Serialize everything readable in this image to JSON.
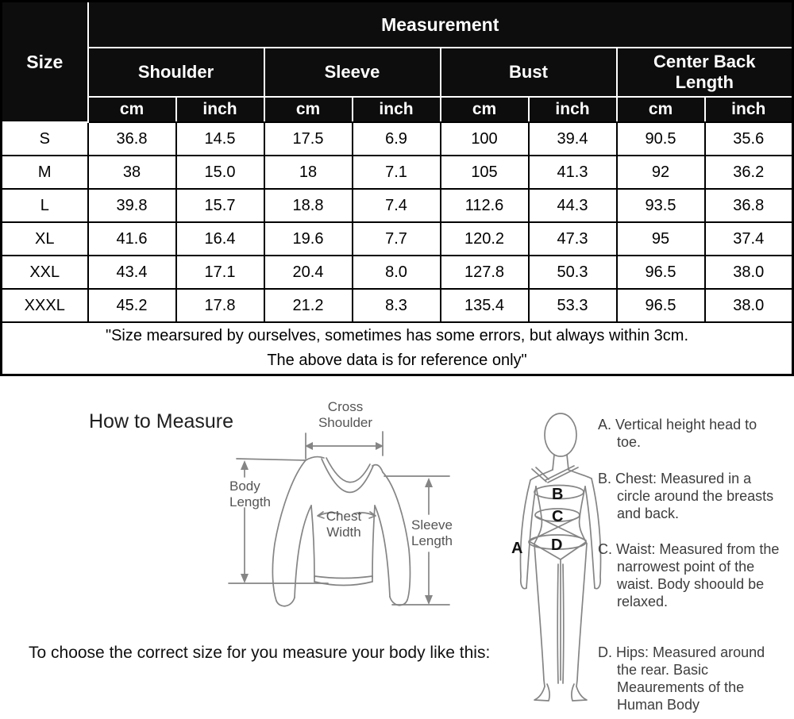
{
  "table": {
    "measurement_header": "Measurement",
    "size_header": "Size",
    "groups": [
      {
        "label": "Shoulder"
      },
      {
        "label": "Sleeve"
      },
      {
        "label": "Bust"
      },
      {
        "label": "Center Back Length"
      }
    ],
    "units": [
      "cm",
      "inch"
    ],
    "rows": [
      {
        "size": "S",
        "values": [
          "36.8",
          "14.5",
          "17.5",
          "6.9",
          "100",
          "39.4",
          "90.5",
          "35.6"
        ]
      },
      {
        "size": "M",
        "values": [
          "38",
          "15.0",
          "18",
          "7.1",
          "105",
          "41.3",
          "92",
          "36.2"
        ]
      },
      {
        "size": "L",
        "values": [
          "39.8",
          "15.7",
          "18.8",
          "7.4",
          "112.6",
          "44.3",
          "93.5",
          "36.8"
        ]
      },
      {
        "size": "XL",
        "values": [
          "41.6",
          "16.4",
          "19.6",
          "7.7",
          "120.2",
          "47.3",
          "95",
          "37.4"
        ]
      },
      {
        "size": "XXL",
        "values": [
          "43.4",
          "17.1",
          "20.4",
          "8.0",
          "127.8",
          "50.3",
          "96.5",
          "38.0"
        ]
      },
      {
        "size": "XXXL",
        "values": [
          "45.2",
          "17.8",
          "21.2",
          "8.3",
          "135.4",
          "53.3",
          "96.5",
          "38.0"
        ]
      }
    ],
    "note": "\"Size mearsured by ourselves, sometimes has some errors, but always within 3cm.\nThe above data is for reference only\""
  },
  "how_to_measure": {
    "title": "How to Measure",
    "labels": {
      "cross_shoulder": "Cross\nShoulder",
      "body_length": "Body\nLength",
      "chest_width": "Chest\nWidth",
      "sleeve_length": "Sleeve\nLength"
    },
    "figure_letters": {
      "a": "A",
      "b": "B",
      "c": "C",
      "d": "D"
    },
    "instructions": [
      {
        "letter": "A.",
        "text": "Vertical height head to toe."
      },
      {
        "letter": "B.",
        "text": "Chest: Measured in a circle around the breasts and back."
      },
      {
        "letter": "C.",
        "text": "Waist: Measured from the narrowest point of the waist. Body shoould be relaxed."
      },
      {
        "letter": "D.",
        "text": "Hips: Measured around the rear. Basic Meaurements of the Human Body"
      }
    ]
  },
  "footer": {
    "text": "To choose the correct size for you measure your body like this:"
  },
  "colors": {
    "header_bg": "#0d0d0d",
    "header_text": "#ffffff",
    "table_border": "#000000",
    "diagram_line": "#858585",
    "diagram_text": "#555555",
    "instruction_text": "#3d3d3d"
  }
}
